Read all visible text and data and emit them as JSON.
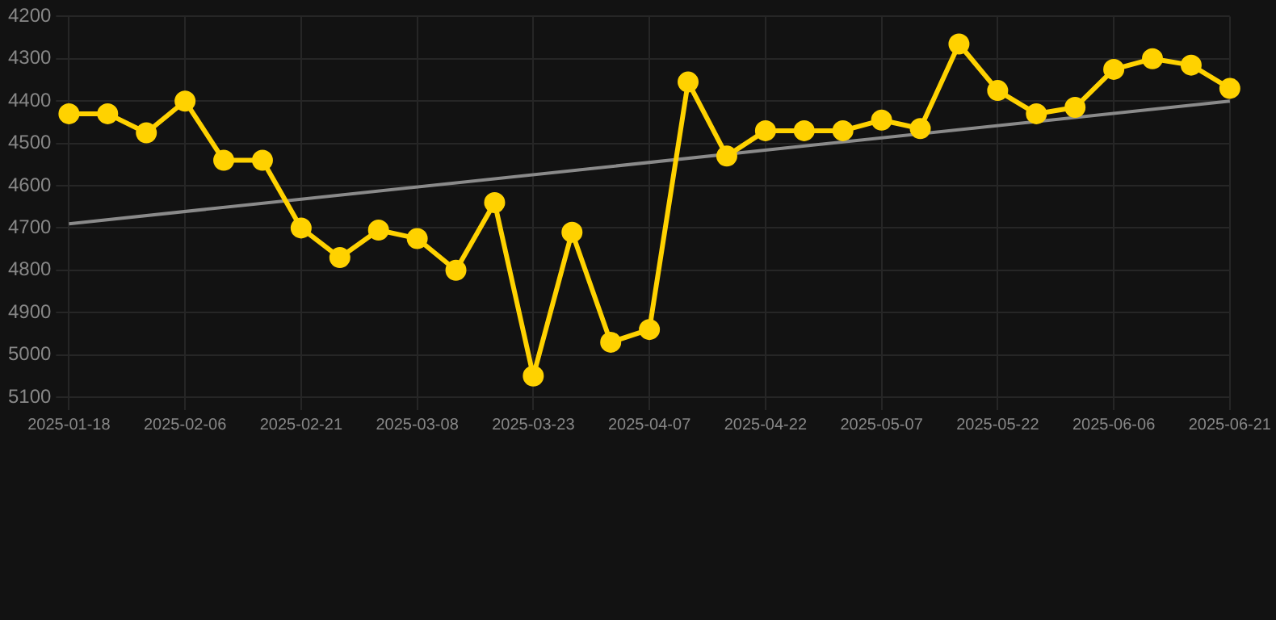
{
  "chart_data": {
    "type": "line",
    "categories": [
      "2025-01-18",
      null,
      null,
      "2025-02-06",
      null,
      null,
      "2025-02-21",
      null,
      null,
      "2025-03-08",
      null,
      null,
      "2025-03-23",
      null,
      null,
      "2025-04-07",
      null,
      null,
      "2025-04-22",
      null,
      null,
      "2025-05-07",
      null,
      null,
      "2025-05-22",
      null,
      null,
      "2025-06-06",
      null,
      null,
      "2025-06-21"
    ],
    "series": [
      {
        "color": "#ffd200",
        "marker": "circle",
        "values": [
          4430,
          4430,
          4475,
          4400,
          4540,
          4540,
          4700,
          4770,
          4705,
          4725,
          4800,
          4640,
          5050,
          4710,
          4970,
          4940,
          4355,
          4530,
          4470,
          4470,
          4470,
          4445,
          4465,
          4265,
          4375,
          4430,
          4415,
          4325,
          4300,
          4315,
          4370
        ]
      },
      {
        "type": "line",
        "color": "#8a8a8a",
        "marker": "none",
        "values": [
          4690,
          null,
          null,
          null,
          null,
          null,
          null,
          null,
          null,
          null,
          null,
          null,
          null,
          null,
          null,
          null,
          null,
          null,
          null,
          null,
          null,
          null,
          null,
          null,
          null,
          null,
          null,
          null,
          null,
          null,
          4400
        ]
      }
    ],
    "ylim": [
      5100,
      4200
    ],
    "yticks": [
      4200,
      4300,
      4400,
      4500,
      4600,
      4700,
      4800,
      4900,
      5000,
      5100
    ],
    "grid": true,
    "legend": false
  }
}
